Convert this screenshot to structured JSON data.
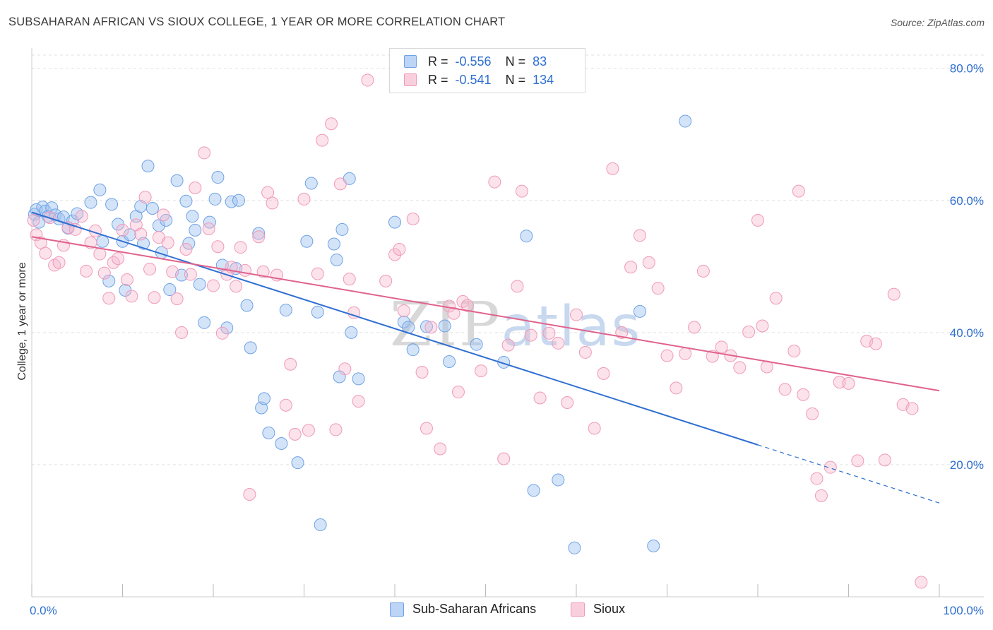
{
  "header": {
    "title": "SUBSAHARAN AFRICAN VS SIOUX COLLEGE, 1 YEAR OR MORE CORRELATION CHART",
    "source": "Source: ZipAtlas.com"
  },
  "watermark": {
    "zip": "ZIP",
    "atlas": "atlas"
  },
  "legend": {
    "rows": [
      {
        "r_label": "R =",
        "r_value": "-0.556",
        "n_label": "N =",
        "n_value": "83",
        "color": "#6fa2e6"
      },
      {
        "r_label": "R =",
        "r_value": "-0.541",
        "n_label": "N =",
        "n_value": "134",
        "color": "#f09ab8"
      }
    ]
  },
  "bottom_legend": [
    "Sub-Saharan Africans",
    "Sioux"
  ],
  "chart_data": {
    "type": "scatter",
    "title": "SUBSAHARAN AFRICAN VS SIOUX COLLEGE, 1 YEAR OR MORE CORRELATION CHART",
    "ylabel": "College, 1 year or more",
    "xlabel": "",
    "xlim": [
      0,
      100
    ],
    "ylim": [
      0,
      82
    ],
    "x_tick_labels": [
      "0.0%",
      "100.0%"
    ],
    "y_ticks": [
      20,
      40,
      60,
      80
    ],
    "y_tick_labels": [
      "20.0%",
      "40.0%",
      "60.0%",
      "80.0%"
    ],
    "grid": true,
    "legend_position": "top-center",
    "series": [
      {
        "name": "Sub-Saharan Africans",
        "color": "#6fa2e6",
        "trend": {
          "x0": 0,
          "y0": 58.2,
          "x1": 80,
          "y1": 23.0,
          "dashed_to_x": 100,
          "dashed_to_y": 14.2
        },
        "points": [
          [
            0.3,
            57.9
          ],
          [
            0.5,
            58.6
          ],
          [
            0.8,
            56.7
          ],
          [
            1.2,
            59.0
          ],
          [
            1.5,
            58.4
          ],
          [
            1.8,
            57.6
          ],
          [
            2.2,
            58.9
          ],
          [
            2.6,
            57.8
          ],
          [
            3.0,
            57.2
          ],
          [
            3.5,
            57.5
          ],
          [
            4.0,
            55.8
          ],
          [
            4.5,
            56.9
          ],
          [
            5.0,
            58.0
          ],
          [
            6.5,
            59.7
          ],
          [
            7.5,
            61.6
          ],
          [
            7.8,
            53.8
          ],
          [
            8.5,
            47.8
          ],
          [
            8.8,
            59.4
          ],
          [
            9.5,
            56.4
          ],
          [
            10.0,
            53.8
          ],
          [
            10.3,
            46.4
          ],
          [
            10.8,
            54.8
          ],
          [
            11.5,
            57.6
          ],
          [
            12.0,
            59.1
          ],
          [
            12.3,
            53.5
          ],
          [
            12.8,
            65.2
          ],
          [
            13.3,
            58.8
          ],
          [
            14.0,
            56.2
          ],
          [
            14.3,
            52.1
          ],
          [
            14.8,
            57.0
          ],
          [
            15.2,
            46.5
          ],
          [
            16.0,
            63.0
          ],
          [
            16.5,
            48.7
          ],
          [
            17.0,
            59.9
          ],
          [
            17.3,
            53.5
          ],
          [
            17.7,
            57.6
          ],
          [
            18.0,
            55.5
          ],
          [
            18.5,
            47.3
          ],
          [
            19.0,
            41.5
          ],
          [
            19.6,
            56.7
          ],
          [
            20.2,
            60.2
          ],
          [
            20.5,
            63.5
          ],
          [
            21.0,
            50.2
          ],
          [
            21.5,
            40.7
          ],
          [
            22.0,
            59.8
          ],
          [
            22.5,
            49.7
          ],
          [
            22.8,
            60.0
          ],
          [
            23.7,
            44.1
          ],
          [
            24.1,
            37.7
          ],
          [
            25.0,
            55.0
          ],
          [
            25.3,
            28.6
          ],
          [
            25.6,
            30.0
          ],
          [
            26.1,
            24.8
          ],
          [
            27.5,
            23.2
          ],
          [
            28.0,
            43.4
          ],
          [
            29.3,
            20.3
          ],
          [
            30.3,
            53.8
          ],
          [
            30.8,
            62.6
          ],
          [
            31.5,
            43.1
          ],
          [
            31.8,
            10.9
          ],
          [
            33.3,
            53.4
          ],
          [
            33.6,
            51.0
          ],
          [
            33.9,
            33.3
          ],
          [
            34.2,
            55.6
          ],
          [
            35.0,
            63.3
          ],
          [
            35.2,
            40.0
          ],
          [
            36.0,
            33.0
          ],
          [
            40.0,
            56.7
          ],
          [
            41.0,
            41.6
          ],
          [
            41.5,
            40.8
          ],
          [
            42.0,
            37.4
          ],
          [
            43.5,
            40.9
          ],
          [
            45.5,
            41.0
          ],
          [
            46.0,
            35.6
          ],
          [
            49.0,
            38.2
          ],
          [
            52.0,
            35.5
          ],
          [
            54.5,
            54.6
          ],
          [
            55.3,
            16.1
          ],
          [
            58.0,
            17.7
          ],
          [
            59.8,
            7.4
          ],
          [
            67.0,
            43.2
          ],
          [
            68.5,
            7.7
          ],
          [
            72.0,
            72.0
          ]
        ]
      },
      {
        "name": "Sioux",
        "color": "#f09ab8",
        "trend": {
          "x0": 0,
          "y0": 54.5,
          "x1": 100,
          "y1": 31.2
        },
        "points": [
          [
            0.2,
            57.0
          ],
          [
            0.5,
            54.8
          ],
          [
            1.0,
            53.6
          ],
          [
            1.5,
            52.0
          ],
          [
            2.0,
            57.4
          ],
          [
            2.5,
            50.2
          ],
          [
            3.0,
            50.6
          ],
          [
            3.5,
            53.2
          ],
          [
            4.0,
            55.9
          ],
          [
            4.8,
            55.6
          ],
          [
            5.5,
            57.6
          ],
          [
            6.0,
            49.3
          ],
          [
            6.5,
            53.6
          ],
          [
            7.0,
            55.4
          ],
          [
            7.5,
            51.9
          ],
          [
            8.0,
            49.0
          ],
          [
            8.5,
            45.2
          ],
          [
            9.0,
            50.6
          ],
          [
            9.5,
            51.2
          ],
          [
            10.0,
            55.5
          ],
          [
            10.5,
            48.0
          ],
          [
            11.0,
            45.5
          ],
          [
            11.5,
            56.3
          ],
          [
            12.0,
            54.9
          ],
          [
            12.5,
            60.5
          ],
          [
            13.0,
            49.6
          ],
          [
            13.5,
            45.3
          ],
          [
            14.0,
            54.4
          ],
          [
            14.5,
            57.8
          ],
          [
            15.0,
            53.6
          ],
          [
            15.5,
            49.2
          ],
          [
            16.0,
            45.1
          ],
          [
            16.5,
            40.0
          ],
          [
            17.0,
            52.6
          ],
          [
            17.5,
            48.8
          ],
          [
            18.0,
            61.9
          ],
          [
            19.0,
            67.2
          ],
          [
            19.5,
            55.7
          ],
          [
            20.0,
            47.1
          ],
          [
            20.5,
            53.0
          ],
          [
            21.0,
            39.9
          ],
          [
            21.5,
            48.8
          ],
          [
            22.0,
            49.9
          ],
          [
            22.5,
            47.0
          ],
          [
            23.0,
            52.9
          ],
          [
            23.5,
            49.4
          ],
          [
            24.0,
            15.5
          ],
          [
            25.0,
            54.5
          ],
          [
            25.5,
            49.2
          ],
          [
            26.0,
            61.2
          ],
          [
            26.5,
            59.6
          ],
          [
            27.0,
            48.7
          ],
          [
            28.0,
            29.0
          ],
          [
            28.5,
            35.2
          ],
          [
            29.0,
            24.6
          ],
          [
            30.0,
            60.2
          ],
          [
            30.5,
            25.2
          ],
          [
            31.5,
            48.9
          ],
          [
            32.0,
            69.1
          ],
          [
            33.0,
            71.6
          ],
          [
            33.5,
            25.3
          ],
          [
            34.0,
            62.5
          ],
          [
            34.5,
            34.5
          ],
          [
            35.0,
            48.1
          ],
          [
            35.5,
            43.0
          ],
          [
            36.0,
            29.6
          ],
          [
            37.0,
            78.2
          ],
          [
            39.0,
            47.8
          ],
          [
            40.0,
            51.8
          ],
          [
            40.5,
            52.6
          ],
          [
            41.0,
            43.3
          ],
          [
            42.0,
            57.2
          ],
          [
            43.0,
            34.0
          ],
          [
            43.5,
            25.5
          ],
          [
            44.0,
            40.8
          ],
          [
            45.0,
            22.4
          ],
          [
            46.0,
            44.0
          ],
          [
            46.5,
            42.9
          ],
          [
            47.0,
            31.0
          ],
          [
            47.5,
            44.7
          ],
          [
            48.0,
            44.1
          ],
          [
            49.5,
            34.2
          ],
          [
            51.0,
            62.8
          ],
          [
            52.0,
            20.9
          ],
          [
            52.5,
            38.1
          ],
          [
            53.5,
            47.0
          ],
          [
            54.0,
            61.4
          ],
          [
            55.0,
            39.6
          ],
          [
            56.0,
            30.1
          ],
          [
            57.0,
            39.9
          ],
          [
            58.0,
            38.4
          ],
          [
            59.0,
            29.4
          ],
          [
            60.0,
            42.7
          ],
          [
            61.0,
            37.0
          ],
          [
            62.0,
            25.5
          ],
          [
            63.0,
            33.8
          ],
          [
            64.0,
            64.8
          ],
          [
            65.0,
            40.0
          ],
          [
            66.0,
            49.9
          ],
          [
            67.0,
            54.7
          ],
          [
            68.0,
            50.6
          ],
          [
            69.0,
            46.7
          ],
          [
            70.0,
            36.5
          ],
          [
            71.0,
            31.6
          ],
          [
            72.0,
            36.8
          ],
          [
            73.0,
            40.8
          ],
          [
            74.0,
            49.3
          ],
          [
            75.0,
            36.4
          ],
          [
            76.0,
            37.8
          ],
          [
            77.0,
            36.5
          ],
          [
            78.0,
            34.7
          ],
          [
            79.0,
            40.1
          ],
          [
            80.0,
            57.0
          ],
          [
            80.5,
            41.0
          ],
          [
            81.0,
            34.8
          ],
          [
            82.0,
            45.2
          ],
          [
            83.0,
            31.4
          ],
          [
            84.0,
            37.2
          ],
          [
            84.5,
            61.4
          ],
          [
            85.0,
            30.6
          ],
          [
            86.0,
            27.7
          ],
          [
            86.5,
            17.9
          ],
          [
            87.0,
            15.3
          ],
          [
            88.0,
            19.6
          ],
          [
            89.0,
            32.5
          ],
          [
            90.0,
            32.3
          ],
          [
            91.0,
            20.6
          ],
          [
            92.0,
            38.7
          ],
          [
            93.0,
            38.3
          ],
          [
            94.0,
            20.7
          ],
          [
            95.0,
            45.8
          ],
          [
            96.0,
            29.1
          ],
          [
            97.0,
            28.5
          ],
          [
            98.0,
            2.2
          ]
        ]
      }
    ]
  }
}
